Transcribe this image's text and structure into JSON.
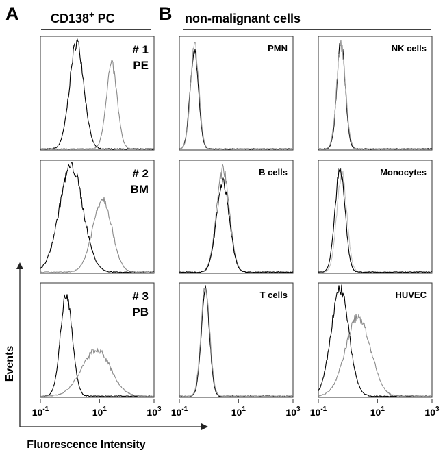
{
  "figure": {
    "panel_a_letter": "A",
    "panel_b_letter": "B",
    "panel_a_title": {
      "main": "CD138",
      "sup": "+",
      "rest": " PC"
    },
    "panel_b_title": "non-malignant cells",
    "y_axis_label": "Events",
    "x_axis_label": "Fluorescence Intensity"
  },
  "chart_data": {
    "type": "histogram",
    "x_scale": "log",
    "xlim": [
      0.1,
      1000
    ],
    "x_ticks": [
      {
        "value": 0.1,
        "base": "10",
        "exp": "-1"
      },
      {
        "value": 10,
        "base": "10",
        "exp": "1"
      },
      {
        "value": 1000,
        "base": "10",
        "exp": "3"
      }
    ],
    "colors": {
      "control": "#000000",
      "stained": "#8a8a8a",
      "stained_light": "#c4c4c4"
    },
    "panels": [
      {
        "label": [
          "# 1",
          "PE"
        ],
        "row": 1,
        "col": 1,
        "series": [
          {
            "color": "#000000",
            "peak_intensity": 1.7,
            "spread_decades": 0.24,
            "relative_height": 0.95
          },
          {
            "color": "#8a8a8a",
            "peak_intensity": 28,
            "spread_decades": 0.2,
            "relative_height": 0.75
          }
        ]
      },
      {
        "label": [
          "PMN"
        ],
        "row": 1,
        "col": 2,
        "series": [
          {
            "color": "#000000",
            "peak_intensity": 0.32,
            "spread_decades": 0.14,
            "relative_height": 0.88
          },
          {
            "color": "#9a9a9a",
            "peak_intensity": 0.33,
            "spread_decades": 0.14,
            "relative_height": 0.93
          }
        ]
      },
      {
        "label": [
          "NK cells"
        ],
        "row": 1,
        "col": 3,
        "series": [
          {
            "color": "#000000",
            "peak_intensity": 0.59,
            "spread_decades": 0.14,
            "relative_height": 0.95
          },
          {
            "color": "#9a9a9a",
            "peak_intensity": 0.59,
            "spread_decades": 0.15,
            "relative_height": 0.92
          }
        ]
      },
      {
        "label": [
          "# 2",
          "BM"
        ],
        "row": 2,
        "col": 1,
        "series": [
          {
            "color": "#000000",
            "peak_intensity": 1.1,
            "spread_decades": 0.4,
            "relative_height": 0.95
          },
          {
            "color": "#8a8a8a",
            "peak_intensity": 13,
            "spread_decades": 0.34,
            "relative_height": 0.66
          }
        ]
      },
      {
        "label": [
          "B cells"
        ],
        "row": 2,
        "col": 2,
        "series": [
          {
            "color": "#8a8a8a",
            "peak_intensity": 3,
            "spread_decades": 0.22,
            "relative_height": 0.92
          },
          {
            "color": "#000000",
            "peak_intensity": 3,
            "spread_decades": 0.22,
            "relative_height": 0.8
          }
        ]
      },
      {
        "label": [
          "Monocytes"
        ],
        "row": 2,
        "col": 3,
        "series": [
          {
            "color": "#c4c4c4",
            "peak_intensity": 0.62,
            "spread_decades": 0.17,
            "relative_height": 0.88
          },
          {
            "color": "#000000",
            "peak_intensity": 0.54,
            "spread_decades": 0.17,
            "relative_height": 0.92
          }
        ]
      },
      {
        "label": [
          "# 3",
          "PB"
        ],
        "row": 3,
        "col": 1,
        "series": [
          {
            "color": "#000000",
            "peak_intensity": 0.76,
            "spread_decades": 0.2,
            "relative_height": 0.91
          },
          {
            "color": "#8a8a8a",
            "peak_intensity": 8,
            "spread_decades": 0.5,
            "relative_height": 0.41
          }
        ]
      },
      {
        "label": [
          "T cells"
        ],
        "row": 3,
        "col": 2,
        "series": [
          {
            "color": "#000000",
            "peak_intensity": 0.76,
            "spread_decades": 0.14,
            "relative_height": 0.93
          },
          {
            "color": "#9a9a9a",
            "peak_intensity": 0.76,
            "spread_decades": 0.15,
            "relative_height": 0.95
          }
        ]
      },
      {
        "label": [
          "HUVEC"
        ],
        "row": 3,
        "col": 3,
        "series": [
          {
            "color": "#000000",
            "peak_intensity": 0.54,
            "spread_decades": 0.3,
            "relative_height": 0.95
          },
          {
            "color": "#8a8a8a",
            "peak_intensity": 2.2,
            "spread_decades": 0.42,
            "relative_height": 0.7
          }
        ]
      }
    ]
  }
}
